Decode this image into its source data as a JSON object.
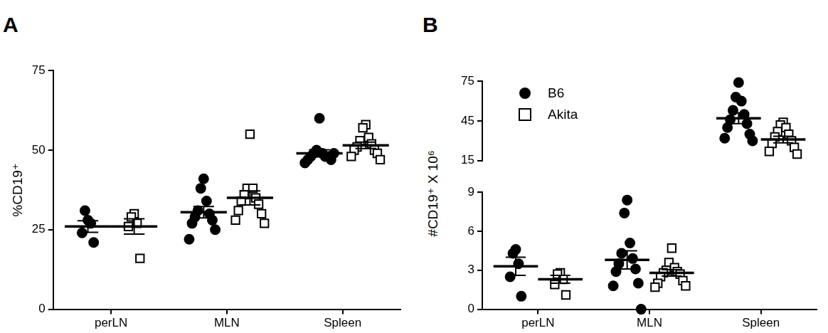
{
  "chart_data": [
    {
      "type": "scatter",
      "title": "A",
      "y_label": "%CD19⁺",
      "categories": [
        "perLN",
        "MLN",
        "Spleen"
      ],
      "ylim": [
        0,
        75
      ],
      "yticks": [
        0,
        25,
        50,
        75
      ],
      "grid": false,
      "series": [
        {
          "color": "#000000",
          "marker": "circle",
          "values": [
            [
              28,
              31,
              27,
              24,
              21
            ],
            [
              41,
              38,
              34,
              31,
              30,
              29,
              28,
              27,
              25,
              22
            ],
            [
              60,
              50,
              49,
              49,
              48,
              48,
              48,
              47,
              47,
              46,
              49
            ]
          ],
          "means": [
            26,
            30.5,
            49
          ],
          "sem": [
            1.8,
            1.8,
            1.1
          ]
        },
        {
          "color": "#000000",
          "marker": "open_square",
          "values": [
            [
              30,
              29,
              27,
              26,
              16
            ],
            [
              55,
              38,
              38,
              36,
              35,
              34,
              33,
              31,
              30,
              28,
              27
            ],
            [
              58,
              57,
              54,
              53,
              52,
              51,
              50,
              50,
              49,
              48,
              47
            ]
          ],
          "means": [
            26,
            35,
            51.5
          ],
          "sem": [
            2.4,
            2.2,
            1.0
          ]
        }
      ]
    },
    {
      "type": "scatter",
      "title": "B",
      "y_label": "#CD19⁺ X 10⁶",
      "categories": [
        "perLN",
        "MLN",
        "Spleen"
      ],
      "ylim": [
        0,
        75
      ],
      "ylim_break": [
        9,
        15
      ],
      "yticks": [
        0,
        3,
        6,
        9,
        15,
        45,
        75
      ],
      "grid": false,
      "legend": "upper left",
      "series": [
        {
          "name": "B6",
          "color": "#000000",
          "marker": "circle",
          "values": [
            [
              4.6,
              4.3,
              3.5,
              2.5,
              1.0
            ],
            [
              8.4,
              7.4,
              5.1,
              4.3,
              3.9,
              3.5,
              3.1,
              2.9,
              2.0,
              1.8,
              0
            ],
            [
              74,
              63,
              60,
              53,
              50,
              46,
              43,
              40,
              35,
              32,
              30
            ]
          ],
          "means": [
            3.3,
            3.8,
            47
          ],
          "sem": [
            0.7,
            0.7,
            4
          ]
        },
        {
          "name": "Akita",
          "color": "#000000",
          "marker": "open_square",
          "values": [
            [
              2.8,
              2.7,
              2.3,
              1.9,
              1.1
            ],
            [
              4.7,
              3.6,
              3.2,
              3.0,
              2.9,
              2.8,
              2.7,
              2.5,
              2.2,
              2.0,
              1.8,
              1.7
            ],
            [
              44,
              42,
              40,
              37,
              35,
              33,
              30,
              28,
              25,
              22,
              20
            ]
          ],
          "means": [
            2.3,
            2.8,
            31
          ],
          "sem": [
            0.3,
            0.25,
            2.5
          ]
        }
      ]
    }
  ]
}
